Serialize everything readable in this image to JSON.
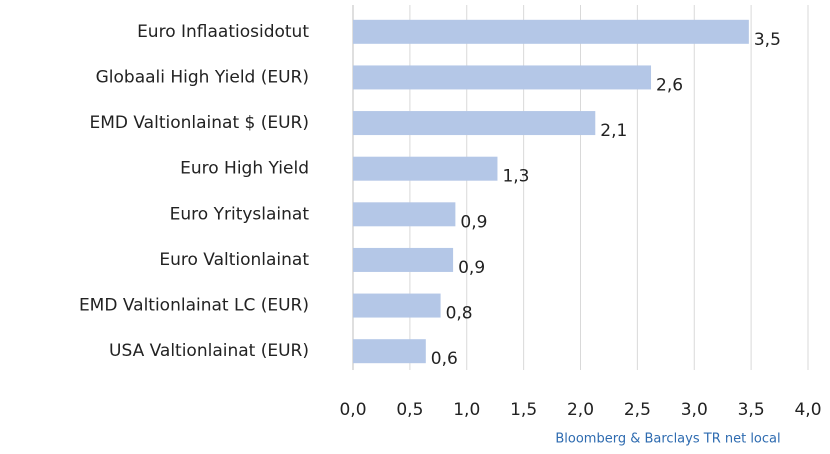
{
  "chart_data": {
    "type": "bar",
    "orientation": "horizontal",
    "categories": [
      "Euro Inflaatiosidotut",
      "Globaali High Yield (EUR)",
      "EMD Valtionlainat $ (EUR)",
      "Euro High Yield",
      "Euro Yrityslainat",
      "Euro Valtionlainat",
      "EMD Valtionlainat LC (EUR)",
      "USA Valtionlainat (EUR)"
    ],
    "values": [
      3.48,
      2.62,
      2.13,
      1.27,
      0.9,
      0.88,
      0.77,
      0.64
    ],
    "value_labels": [
      "3,5",
      "2,6",
      "2,1",
      "1,3",
      "0,9",
      "0,9",
      "0,8",
      "0,6"
    ],
    "color": "#b4c7e7",
    "xlim": [
      0,
      4
    ],
    "xticks": [
      {
        "value": 0,
        "label": "0,0"
      },
      {
        "value": 0.5,
        "label": "0,5"
      },
      {
        "value": 1,
        "label": "1,0"
      },
      {
        "value": 1.5,
        "label": "1,5"
      },
      {
        "value": 2,
        "label": "2,0"
      },
      {
        "value": 2.5,
        "label": "2,5"
      },
      {
        "value": 3,
        "label": "3,0"
      },
      {
        "value": 3.5,
        "label": "3,5"
      },
      {
        "value": 4,
        "label": "4,0"
      }
    ],
    "grid": true,
    "source": "Bloomberg & Barclays TR net local"
  }
}
